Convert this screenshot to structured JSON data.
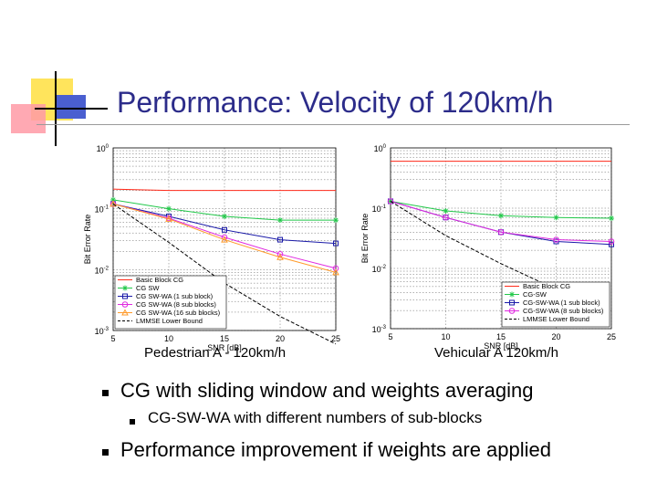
{
  "slide": {
    "title": "Performance: Velocity of 120km/h",
    "caption_left": "Pedestrian A - 120km/h",
    "caption_right": "Vehicular A 120km/h",
    "bullets": [
      {
        "text": "CG with sliding window and weights averaging",
        "level": 1
      },
      {
        "text": "CG-SW-WA with different numbers of sub-blocks",
        "level": 2
      },
      {
        "text": "Performance improvement if weights are applied",
        "level": 1
      }
    ]
  },
  "colors": {
    "title": "#2c2c8a",
    "deco_yellow": "#ffe45c",
    "deco_blue": "#4a5fd0",
    "deco_pink": "#ff9aa6",
    "basic": "#ff2a1a",
    "cgsw": "#22c84a",
    "cgswwa1": "#1a1aa8",
    "cgswwa8": "#e02ae0",
    "cgswwa16": "#ff9a2a",
    "lmmse": "#000000"
  },
  "chart_data": [
    {
      "type": "line",
      "xlabel": "SNR [dB]",
      "ylabel": "Bit Error Rate",
      "xlim": [
        5,
        25
      ],
      "xticks": [
        "5",
        "10",
        "15",
        "20",
        "25"
      ],
      "ylim": [
        0.001,
        1
      ],
      "yscale": "log",
      "yticks": [
        "10^0",
        "10^-1",
        "10^-2",
        "10^-3"
      ],
      "grid": true,
      "legend_position": "bottom-left",
      "x": [
        5,
        10,
        15,
        20,
        25
      ],
      "series": [
        {
          "name": "Basic Block CG",
          "color": "#ff2a1a",
          "marker": "none",
          "dash": "solid",
          "values": [
            0.21,
            0.2,
            0.2,
            0.2,
            0.2
          ]
        },
        {
          "name": "CG SW",
          "color": "#22c84a",
          "marker": "star",
          "dash": "solid",
          "values": [
            0.14,
            0.1,
            0.075,
            0.065,
            0.065
          ]
        },
        {
          "name": "CG SW-WA (1 sub block)",
          "color": "#1a1aa8",
          "marker": "square",
          "dash": "solid",
          "values": [
            0.12,
            0.075,
            0.045,
            0.031,
            0.027
          ]
        },
        {
          "name": "CG SW-WA (8 sub blocks)",
          "color": "#e02ae0",
          "marker": "circle",
          "dash": "solid",
          "values": [
            0.12,
            0.07,
            0.034,
            0.018,
            0.0105
          ]
        },
        {
          "name": "CG SW-WA (16 sub blocks)",
          "color": "#ff9a2a",
          "marker": "triangle",
          "dash": "solid",
          "values": [
            0.12,
            0.068,
            0.031,
            0.016,
            0.009
          ]
        },
        {
          "name": "LMMSE Lower Bound",
          "color": "#000000",
          "marker": "none",
          "dash": "dashed",
          "values": [
            0.12,
            0.028,
            0.006,
            0.0017,
            0.0006
          ]
        }
      ]
    },
    {
      "type": "line",
      "xlabel": "SNR [dB]",
      "ylabel": "Bit Error Rate",
      "xlim": [
        5,
        25
      ],
      "xticks": [
        "5",
        "10",
        "15",
        "20",
        "25"
      ],
      "ylim": [
        0.001,
        1
      ],
      "yscale": "log",
      "yticks": [
        "10^0",
        "10^-1",
        "10^-2",
        "10^-3"
      ],
      "grid": true,
      "legend_position": "bottom-right",
      "x": [
        5,
        10,
        15,
        20,
        25
      ],
      "series": [
        {
          "name": "Basic Block CG",
          "color": "#ff2a1a",
          "marker": "none",
          "dash": "solid",
          "values": [
            0.6,
            0.6,
            0.6,
            0.6,
            0.6
          ]
        },
        {
          "name": "CG-SW",
          "color": "#22c84a",
          "marker": "star",
          "dash": "solid",
          "values": [
            0.13,
            0.09,
            0.075,
            0.07,
            0.068
          ]
        },
        {
          "name": "CG-SW-WA (1 sub block)",
          "color": "#1a1aa8",
          "marker": "square",
          "dash": "solid",
          "values": [
            0.13,
            0.07,
            0.04,
            0.028,
            0.025
          ]
        },
        {
          "name": "CG-SW-WA (8 sub blocks)",
          "color": "#e02ae0",
          "marker": "circle",
          "dash": "solid",
          "values": [
            0.13,
            0.07,
            0.04,
            0.03,
            0.028
          ]
        },
        {
          "name": "LMMSE Lower Bound",
          "color": "#000000",
          "marker": "none",
          "dash": "dashed",
          "values": [
            0.13,
            0.035,
            0.012,
            0.0045,
            0.002
          ]
        }
      ]
    }
  ]
}
